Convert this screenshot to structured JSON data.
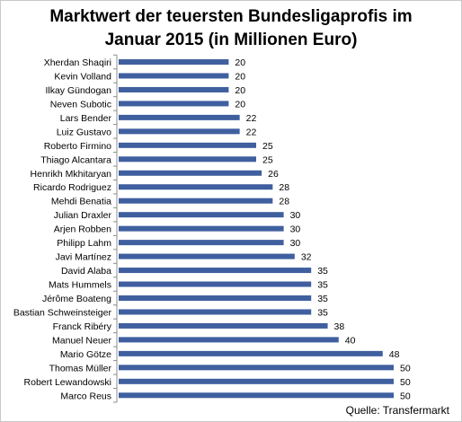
{
  "chart_data": {
    "type": "bar",
    "orientation": "horizontal",
    "title_lines": [
      "Marktwert der teuersten Bundesligaprofis im",
      "Januar 2015 (in Millionen Euro)"
    ],
    "categories": [
      "Xherdan Shaqiri",
      "Kevin Volland",
      "Ilkay Gündogan",
      "Neven Subotic",
      "Lars Bender",
      "Luiz Gustavo",
      "Roberto Firmino",
      "Thiago Alcantara",
      "Henrikh Mkhitaryan",
      "Ricardo Rodriguez",
      "Mehdi Benatia",
      "Julian Draxler",
      "Arjen Robben",
      "Philipp Lahm",
      "Javi Martínez",
      "David Alaba",
      "Mats Hummels",
      "Jérôme Boateng",
      "Bastian Schweinsteiger",
      "Franck Ribéry",
      "Manuel Neuer",
      "Mario Götze",
      "Thomas Müller",
      "Robert Lewandowski",
      "Marco Reus"
    ],
    "values": [
      20,
      20,
      20,
      20,
      22,
      22,
      25,
      25,
      26,
      28,
      28,
      30,
      30,
      30,
      32,
      35,
      35,
      35,
      35,
      38,
      40,
      48,
      50,
      50,
      50
    ],
    "xlim": [
      0,
      50
    ],
    "grid": false,
    "legend": "none",
    "data_labels": true,
    "bar_color": "#3f5f9f",
    "source": "Quelle: Transfermarkt"
  }
}
